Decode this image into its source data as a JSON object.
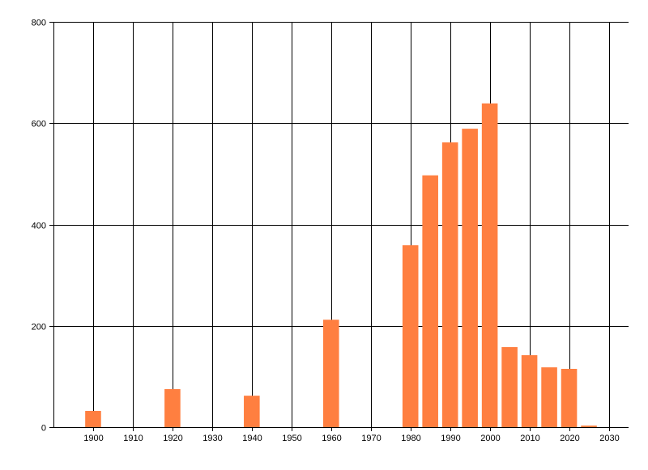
{
  "chart_data": {
    "type": "bar",
    "title": "",
    "xlabel": "",
    "ylabel": "",
    "x": [
      1900,
      1920,
      1940,
      1960,
      1980,
      1985,
      1990,
      1995,
      2000,
      2005,
      2010,
      2015,
      2020,
      2025
    ],
    "values": [
      32,
      75,
      62,
      212,
      359,
      497,
      562,
      589,
      639,
      158,
      142,
      118,
      115,
      3
    ],
    "xlim": [
      1890,
      2035
    ],
    "ylim": [
      0,
      800
    ],
    "xticks": [
      1900,
      1910,
      1920,
      1930,
      1940,
      1950,
      1960,
      1970,
      1980,
      1990,
      2000,
      2010,
      2020,
      2030
    ],
    "yticks": [
      0,
      200,
      400,
      600,
      800
    ],
    "grid": true,
    "bar_color": "#FF7F40",
    "grid_color": "#000000"
  }
}
